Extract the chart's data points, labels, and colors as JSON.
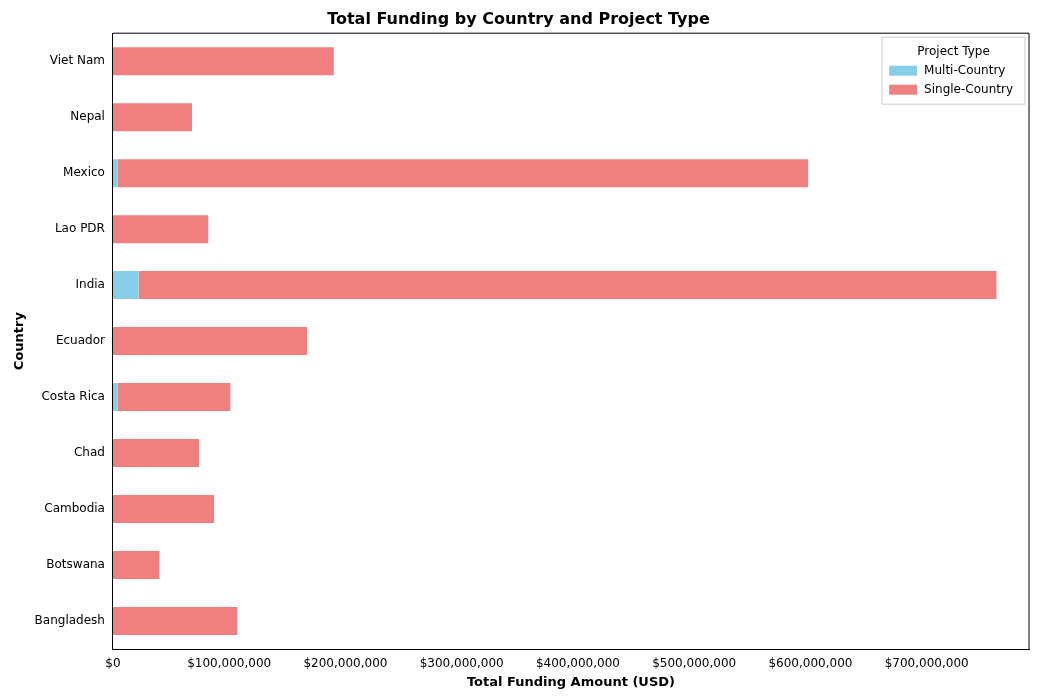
{
  "chart_data": {
    "type": "bar",
    "title": "Total Funding by Country and Project Type",
    "xlabel": "Total Funding Amount (USD)",
    "ylabel": "Country",
    "legend_title": "Project Type",
    "orientation": "horizontal",
    "stacked": true,
    "categories": [
      "Viet Nam",
      "Nepal",
      "Mexico",
      "Lao PDR",
      "India",
      "Ecuador",
      "Costa Rica",
      "Chad",
      "Cambodia",
      "Botswana",
      "Bangladesh"
    ],
    "series": [
      {
        "name": "Multi-Country",
        "color": "#87ceeb",
        "values": [
          0,
          0,
          4000000,
          0,
          22000000,
          0,
          4000000,
          0,
          0,
          0,
          0
        ]
      },
      {
        "name": "Single-Country",
        "color": "#f08080",
        "values": [
          190000000,
          68000000,
          594000000,
          82000000,
          738000000,
          167000000,
          97000000,
          74000000,
          87000000,
          40000000,
          107000000
        ]
      }
    ],
    "xlim": [
      0,
      788000000
    ],
    "xticks": [
      {
        "value": 0,
        "label": "$0"
      },
      {
        "value": 100000000,
        "label": "$100,000,000"
      },
      {
        "value": 200000000,
        "label": "$200,000,000"
      },
      {
        "value": 300000000,
        "label": "$300,000,000"
      },
      {
        "value": 400000000,
        "label": "$400,000,000"
      },
      {
        "value": 500000000,
        "label": "$500,000,000"
      },
      {
        "value": 600000000,
        "label": "$600,000,000"
      },
      {
        "value": 700000000,
        "label": "$700,000,000"
      }
    ],
    "grid": false,
    "legend": "top right"
  }
}
